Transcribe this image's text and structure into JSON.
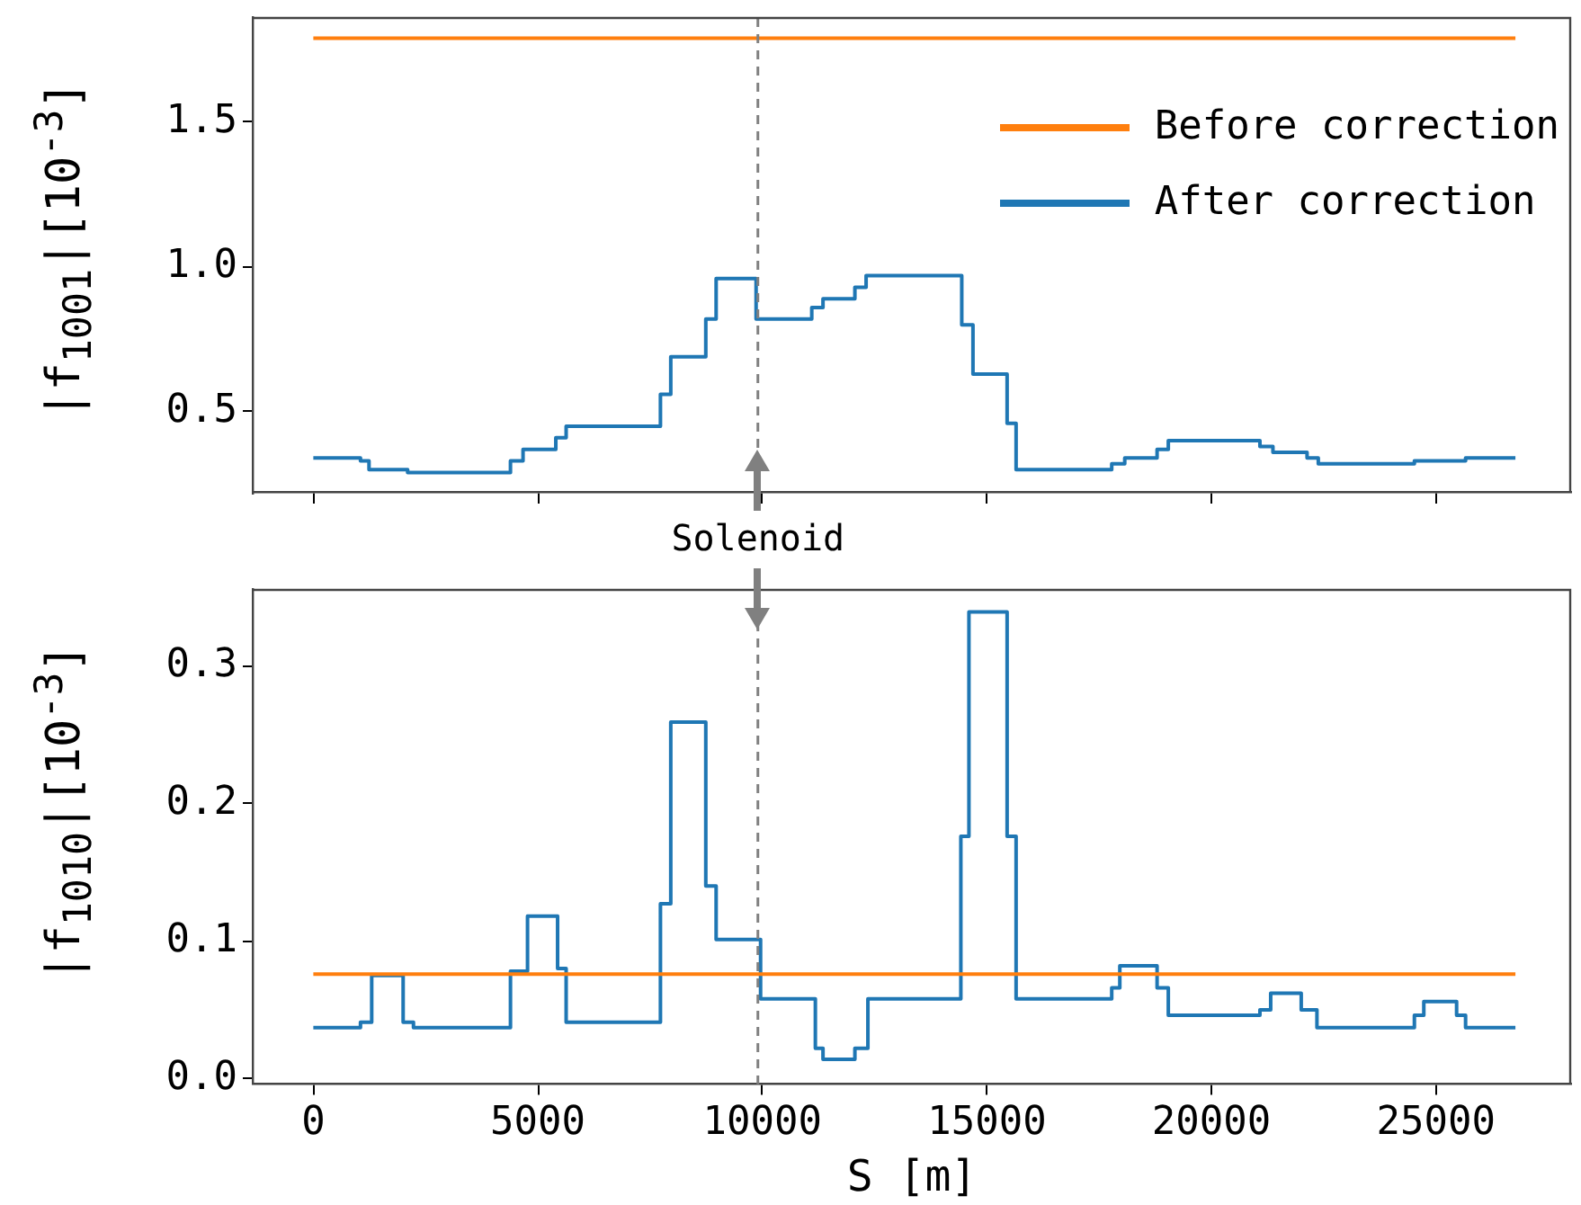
{
  "chart_data": [
    {
      "type": "step",
      "ylabel": "|f$_{1001}$|[10$^{-3}$]",
      "xlim": [
        -1330,
        27990
      ],
      "xticks": [
        0,
        5000,
        10000,
        15000,
        20000,
        25000
      ],
      "ylim": [
        0.22,
        1.86
      ],
      "yticks": [
        0.5,
        {
          "value": 1.0,
          "label": "1.0"
        },
        1.5
      ],
      "tick_labels": "y",
      "legend": "top right",
      "series": [
        {
          "name": "Before correction",
          "color": "#ff7f0e",
          "x": [
            0,
            26770
          ],
          "values": [
            1.79,
            1.79
          ]
        },
        {
          "name": "After correction",
          "color": "#1f77b4",
          "x": [
            0,
            1050,
            1240,
            2100,
            4390,
            4670,
            5400,
            5630,
            7730,
            7960,
            8740,
            8970,
            9860,
            11100,
            11350,
            12060,
            12310,
            14440,
            14690,
            15450,
            15650,
            17780,
            18070,
            18790,
            19040,
            21080,
            21370,
            22130,
            22380,
            24520,
            25660,
            26770
          ],
          "values": [
            0.34,
            0.33,
            0.3,
            0.29,
            0.33,
            0.37,
            0.41,
            0.45,
            0.56,
            0.69,
            0.82,
            0.96,
            0.82,
            0.86,
            0.89,
            0.93,
            0.97,
            0.8,
            0.63,
            0.46,
            0.3,
            0.32,
            0.34,
            0.37,
            0.4,
            0.38,
            0.36,
            0.34,
            0.32,
            0.33,
            0.34,
            0.34
          ]
        }
      ],
      "ref_lines": [
        {
          "axis": "x",
          "value": 9900,
          "color": "#808080",
          "line_style": "dashed"
        }
      ],
      "annotations": [
        "Solenoid"
      ]
    },
    {
      "type": "step",
      "ylabel": "|f$_{1010}$|[10$^{-3}$]",
      "xlabel": "S [m]",
      "xlim": [
        -1330,
        27990
      ],
      "xticks": [
        0,
        5000,
        10000,
        15000,
        20000,
        25000
      ],
      "ylim": [
        -0.004,
        0.355
      ],
      "yticks": [
        {
          "value": 0,
          "label": "0.0"
        },
        0.1,
        0.2,
        0.3
      ],
      "series": [
        {
          "color": "#ff7f0e",
          "x": [
            0,
            26770
          ],
          "values": [
            0.076,
            0.076
          ]
        },
        {
          "color": "#1f77b4",
          "x": [
            0,
            1050,
            1300,
            2000,
            2230,
            4390,
            4770,
            5440,
            5630,
            7730,
            7960,
            8740,
            8970,
            9960,
            11180,
            11350,
            12060,
            12350,
            14420,
            14600,
            15450,
            15650,
            17780,
            17960,
            18790,
            19040,
            21080,
            21320,
            22000,
            22350,
            24520,
            24730,
            25460,
            25660,
            26770
          ],
          "values": [
            0.037,
            0.041,
            0.075,
            0.041,
            0.037,
            0.078,
            0.118,
            0.08,
            0.041,
            0.127,
            0.259,
            0.14,
            0.101,
            0.058,
            0.022,
            0.014,
            0.022,
            0.058,
            0.176,
            0.339,
            0.176,
            0.058,
            0.066,
            0.082,
            0.066,
            0.046,
            0.05,
            0.062,
            0.05,
            0.037,
            0.046,
            0.056,
            0.046,
            0.037,
            0.037
          ]
        }
      ],
      "ref_lines": [
        {
          "axis": "x",
          "value": 9900,
          "color": "#808080",
          "line_style": "dashed"
        }
      ]
    }
  ]
}
